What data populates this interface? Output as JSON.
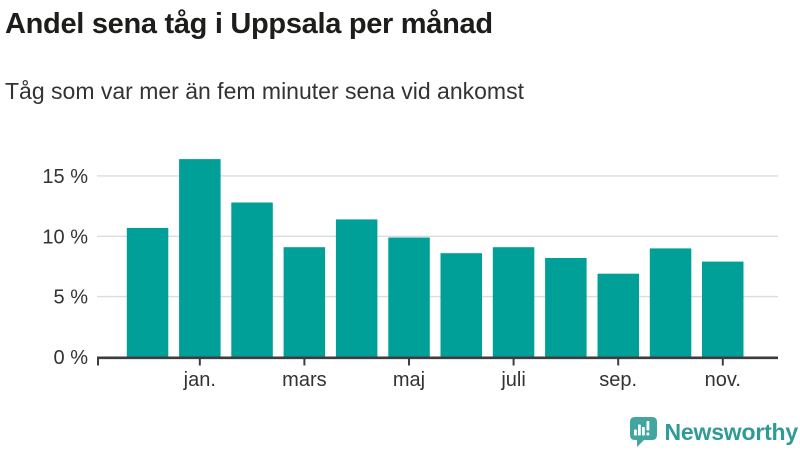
{
  "header": {
    "title": "Andel sena tåg i Uppsala per månad",
    "subtitle": "Tåg som var mer än fem minuter sena vid ankomst"
  },
  "chart_data": {
    "type": "bar",
    "title": "Andel sena tåg i Uppsala per månad",
    "subtitle": "Tåg som var mer än fem minuter sena vid ankomst",
    "xlabel": "",
    "ylabel": "",
    "unit": "%",
    "values": [
      10.7,
      16.4,
      12.8,
      9.1,
      11.4,
      9.9,
      8.6,
      9.1,
      8.2,
      6.9,
      9.0,
      7.9
    ],
    "x_tick_labels": [
      "jan.",
      "mars",
      "maj",
      "juli",
      "sep.",
      "nov."
    ],
    "x_tick_bar_indices": [
      1,
      3,
      5,
      7,
      9,
      11
    ],
    "y_ticks": [
      {
        "value": 0,
        "label": "0 %"
      },
      {
        "value": 5,
        "label": "5 %"
      },
      {
        "value": 10,
        "label": "10 %"
      },
      {
        "value": 15,
        "label": "15 %"
      }
    ],
    "ylim": [
      0,
      16.6
    ],
    "grid": true,
    "legend": "none",
    "bar_color": "#00a099"
  },
  "footer": {
    "brand": "Newsworthy",
    "logo_icon": "newsworthy-speech-bubble-bar-chart-icon"
  },
  "colors": {
    "background": "#ffffff",
    "title": "#1d1d1b",
    "text": "#333333",
    "axis": "#3d3d3d",
    "grid": "#dcdcdc",
    "bar": "#00a099",
    "brand": "#2f9b97",
    "brand_icon": "#43a5a0"
  }
}
